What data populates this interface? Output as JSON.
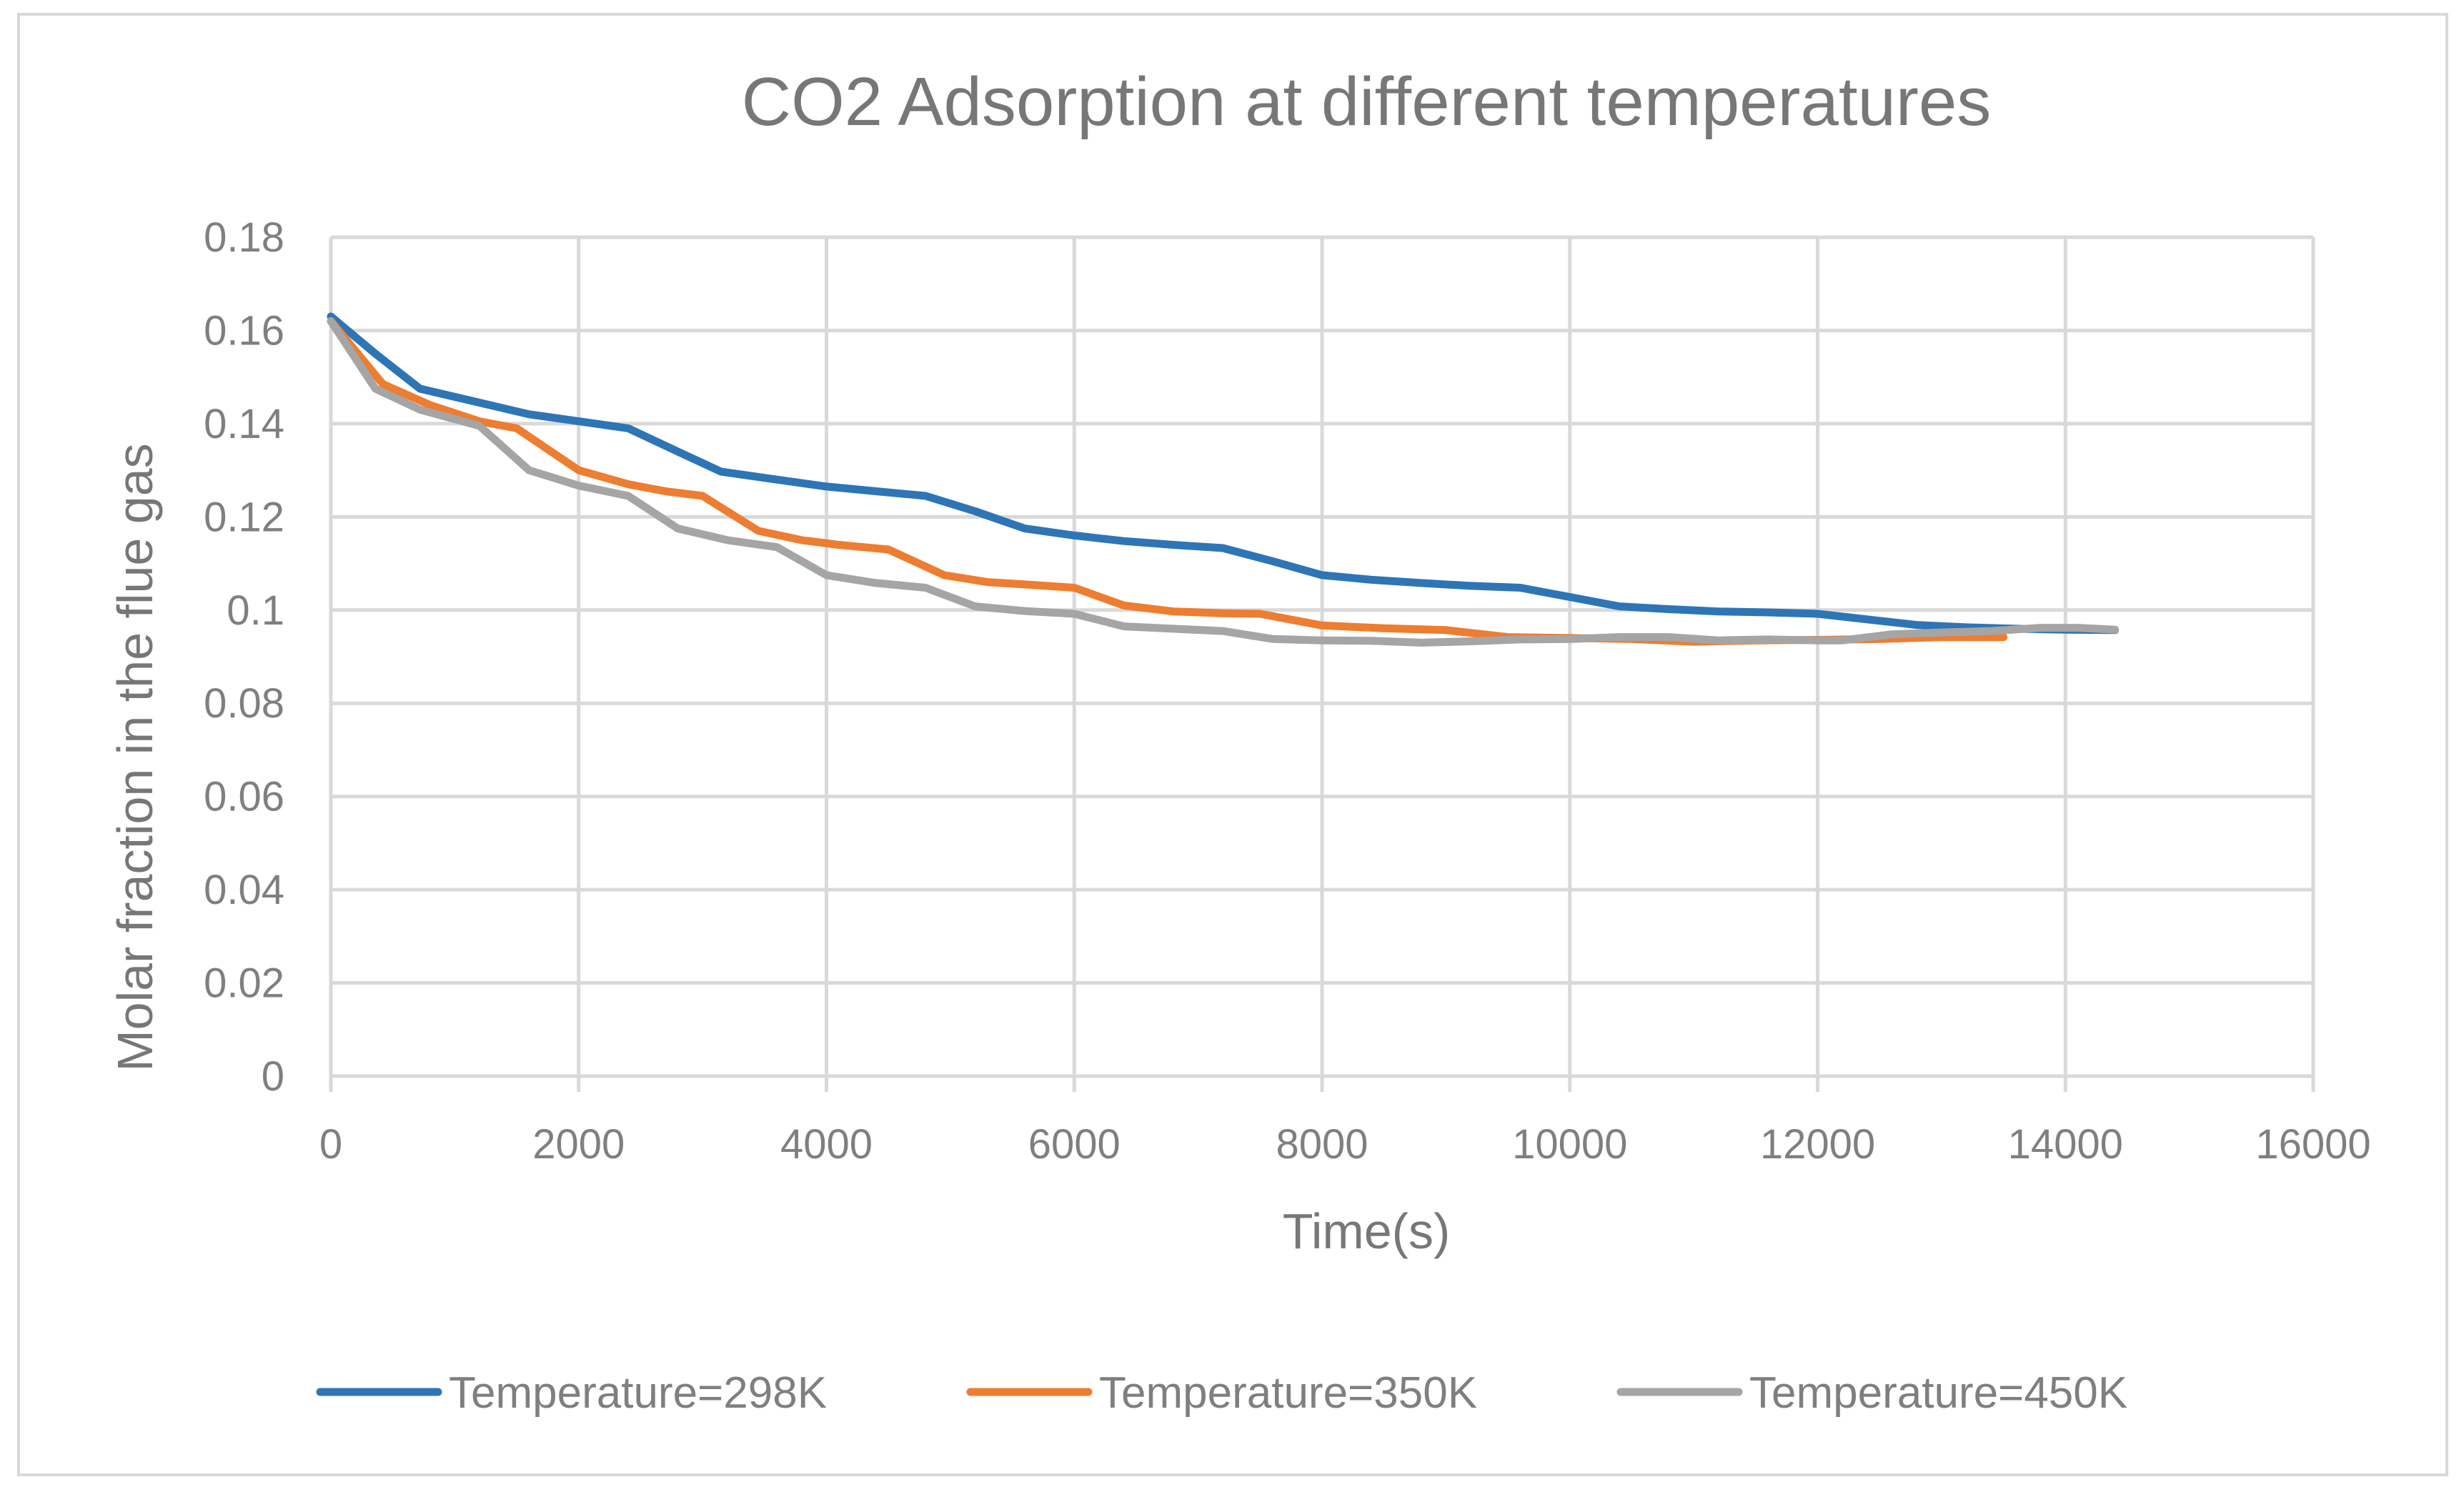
{
  "chart_data": {
    "type": "line",
    "title": "CO2 Adsorption at different temperatures",
    "xlabel": "Time(s)",
    "ylabel": "Molar fraction in the flue gas",
    "xlim": [
      0,
      16000
    ],
    "ylim": [
      0,
      0.18
    ],
    "grid": true,
    "legend_position": "bottom",
    "x_ticks": [
      "0",
      "2000",
      "4000",
      "6000",
      "8000",
      "10000",
      "12000",
      "14000",
      "16000"
    ],
    "y_ticks": [
      "0",
      "0.02",
      "0.04",
      "0.06",
      "0.08",
      "0.1",
      "0.12",
      "0.14",
      "0.16",
      "0.18"
    ],
    "series": [
      {
        "name": "Temperature=298K",
        "color": "#2e75b6",
        "x": [
          0,
          360,
          720,
          1200,
          1600,
          2000,
          2400,
          2800,
          3150,
          3600,
          4000,
          4400,
          4800,
          5200,
          5600,
          6000,
          6400,
          6800,
          7200,
          7600,
          8000,
          8400,
          8800,
          9200,
          9600,
          10000,
          10400,
          10800,
          11200,
          11600,
          12000,
          12400,
          12800,
          13200,
          13600,
          14000,
          14400
        ],
        "values": [
          0.163,
          0.155,
          0.1475,
          0.1445,
          0.142,
          0.1405,
          0.139,
          0.134,
          0.1297,
          0.128,
          0.1265,
          0.1255,
          0.1245,
          0.1212,
          0.1175,
          0.116,
          0.1148,
          0.114,
          0.1133,
          0.1105,
          0.1075,
          0.1065,
          0.1058,
          0.1052,
          0.1048,
          0.1028,
          0.1008,
          0.1002,
          0.0997,
          0.0995,
          0.0992,
          0.098,
          0.0968,
          0.0963,
          0.096,
          0.0958,
          0.0957
        ]
      },
      {
        "name": "Temperature=350K",
        "color": "#ed7d31",
        "x": [
          0,
          420,
          800,
          1200,
          1500,
          2000,
          2400,
          2700,
          3000,
          3450,
          3800,
          4100,
          4500,
          4950,
          5300,
          5600,
          6000,
          6400,
          6800,
          7200,
          7500,
          8000,
          8500,
          9000,
          9500,
          10000,
          10500,
          11000,
          11500,
          12000,
          12500,
          13000,
          13500
        ],
        "values": [
          0.162,
          0.1485,
          0.144,
          0.1405,
          0.139,
          0.13,
          0.127,
          0.1255,
          0.1245,
          0.117,
          0.115,
          0.114,
          0.113,
          0.1075,
          0.106,
          0.1055,
          0.1048,
          0.101,
          0.0997,
          0.0993,
          0.0992,
          0.0967,
          0.0961,
          0.0957,
          0.0942,
          0.094,
          0.0938,
          0.0932,
          0.0935,
          0.0936,
          0.0938,
          0.0942,
          0.0942
        ]
      },
      {
        "name": "Temperature=450K",
        "color": "#a5a5a5",
        "x": [
          0,
          360,
          720,
          1200,
          1600,
          2000,
          2400,
          2800,
          3200,
          3600,
          4000,
          4400,
          4800,
          5200,
          5600,
          6000,
          6400,
          6800,
          7200,
          7600,
          8000,
          8400,
          8800,
          9200,
          9600,
          10000,
          10400,
          10800,
          11200,
          11600,
          12000,
          12200,
          12600,
          13000,
          13400,
          13800,
          14100,
          14400
        ],
        "values": [
          0.162,
          0.1475,
          0.143,
          0.1395,
          0.13,
          0.1267,
          0.1245,
          0.1175,
          0.115,
          0.1135,
          0.1075,
          0.1058,
          0.1048,
          0.1008,
          0.0998,
          0.0992,
          0.0965,
          0.096,
          0.0955,
          0.0938,
          0.0935,
          0.0934,
          0.093,
          0.0933,
          0.0937,
          0.0938,
          0.0942,
          0.0942,
          0.0935,
          0.0937,
          0.0935,
          0.0935,
          0.0948,
          0.0952,
          0.0955,
          0.0962,
          0.0962,
          0.0958
        ]
      }
    ]
  }
}
